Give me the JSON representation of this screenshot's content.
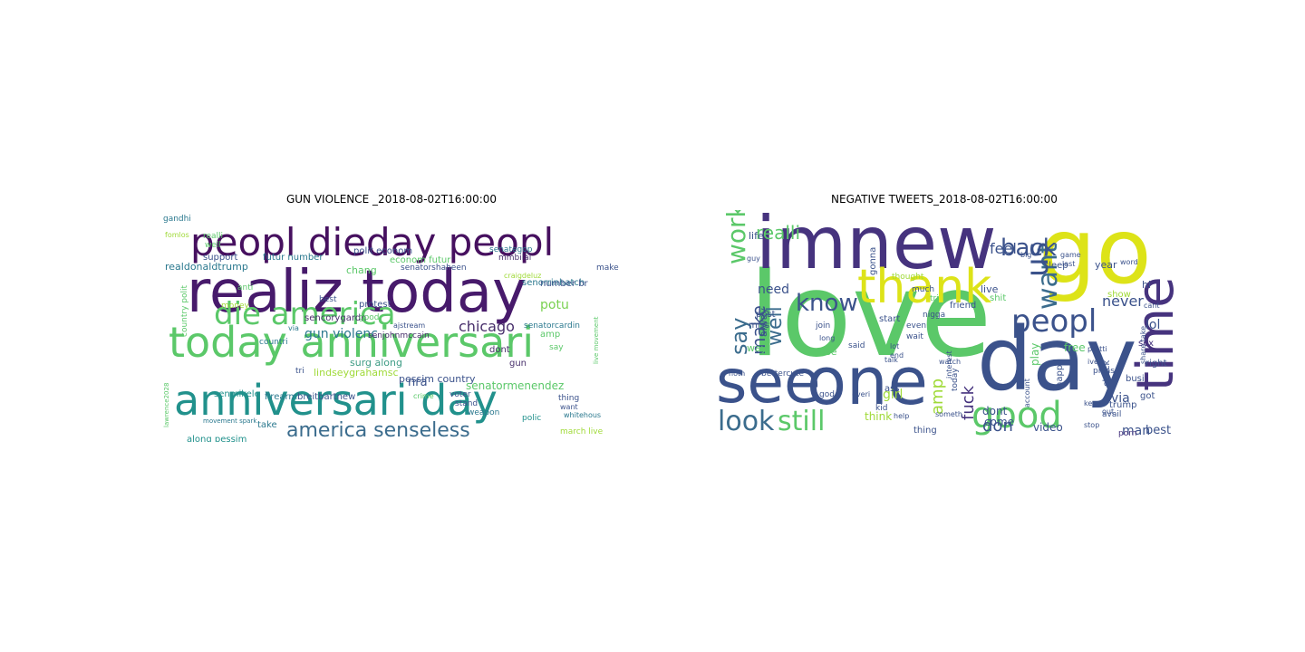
{
  "panels": [
    {
      "title": "GUN VIOLENCE _2018-08-02T16:00:00",
      "words": [
        {
          "text": "realiz today",
          "color": "#471a6b"
        },
        {
          "text": "today anniversari",
          "color": "#5bc869"
        },
        {
          "text": "anniversari day",
          "color": "#21918c"
        },
        {
          "text": "peopl dieday peopl",
          "color": "#46105f"
        },
        {
          "text": "die america",
          "color": "#5bc869"
        },
        {
          "text": "america senseless",
          "color": "#3b6c8d"
        },
        {
          "text": "chicago",
          "color": "#482f6b"
        },
        {
          "text": "gun violenc",
          "color": "#2a788e"
        },
        {
          "text": "potu",
          "color": "#7ad151"
        },
        {
          "text": "nra",
          "color": "#3b528b"
        },
        {
          "text": "senatormenendez",
          "color": "#5bc869"
        },
        {
          "text": "pessim country",
          "color": "#3b528b"
        },
        {
          "text": "lindseygrahamsc",
          "color": "#a0da39"
        },
        {
          "text": "surg along",
          "color": "#3e9c85"
        },
        {
          "text": "senmikele",
          "color": "#21918c"
        },
        {
          "text": "firearm",
          "color": "#2a788e"
        },
        {
          "text": "breitbartnew",
          "color": "#3b528b"
        },
        {
          "text": "along pessim",
          "color": "#21918c"
        },
        {
          "text": "take",
          "color": "#2a788e"
        },
        {
          "text": "senorrinhatch",
          "color": "#2a788e"
        },
        {
          "text": "sencorygardn",
          "color": "#482f6b"
        },
        {
          "text": "realdonaldtrump",
          "color": "#2a788e"
        },
        {
          "text": "support",
          "color": "#3b528b"
        },
        {
          "text": "futur number",
          "color": "#2a788e"
        },
        {
          "text": "polit econom",
          "color": "#3b528b"
        },
        {
          "text": "econom futur",
          "color": "#5bc869"
        },
        {
          "text": "number br",
          "color": "#3b528b"
        },
        {
          "text": "chang",
          "color": "#5bc869"
        },
        {
          "text": "gandhi",
          "color": "#2a788e"
        },
        {
          "text": "realli",
          "color": "#5bc869"
        },
        {
          "text": "well",
          "color": "#5bc869"
        },
        {
          "text": "mmbilal",
          "color": "#482f6b"
        },
        {
          "text": "senategop",
          "color": "#2a788e"
        },
        {
          "text": "senatorshaheen",
          "color": "#3b528b"
        },
        {
          "text": "craigdeluz",
          "color": "#a0da39"
        },
        {
          "text": "senatorcardin",
          "color": "#2a788e"
        },
        {
          "text": "ajstream",
          "color": "#3b528b"
        },
        {
          "text": "senjohnmccain",
          "color": "#482f6b"
        },
        {
          "text": "amp",
          "color": "#5bc869"
        },
        {
          "text": "dont",
          "color": "#482f6b"
        },
        {
          "text": "gun",
          "color": "#482f6b"
        },
        {
          "text": "country polit",
          "color": "#5bc869"
        },
        {
          "text": "countri",
          "color": "#2a788e"
        },
        {
          "text": "anti",
          "color": "#5bc869"
        },
        {
          "text": "money",
          "color": "#a0da39"
        },
        {
          "text": "protest",
          "color": "#3b528b"
        },
        {
          "text": "best",
          "color": "#3b528b"
        },
        {
          "text": "voter",
          "color": "#3b528b"
        },
        {
          "text": "stand",
          "color": "#3b528b"
        },
        {
          "text": "weapon",
          "color": "#2a788e"
        },
        {
          "text": "crime",
          "color": "#5bc869"
        },
        {
          "text": "thing",
          "color": "#3b528b"
        },
        {
          "text": "want",
          "color": "#3b528b"
        },
        {
          "text": "whitehous",
          "color": "#2a788e"
        },
        {
          "text": "polic",
          "color": "#21918c"
        },
        {
          "text": "march live",
          "color": "#a0da39"
        },
        {
          "text": "live movement",
          "color": "#5bc869"
        },
        {
          "text": "make",
          "color": "#3b528b"
        },
        {
          "text": "say",
          "color": "#5bc869"
        },
        {
          "text": "via",
          "color": "#2a788e"
        },
        {
          "text": "tri",
          "color": "#3b528b"
        },
        {
          "text": "good",
          "color": "#5bc869"
        },
        {
          "text": "lawrence2028",
          "color": "#5bc869"
        },
        {
          "text": "movement spark",
          "color": "#2a788e"
        },
        {
          "text": "fomlos",
          "color": "#a0da39"
        }
      ]
    },
    {
      "title": "NEGATIVE TWEETS_2018-08-02T16:00:00",
      "words": [
        {
          "text": "love",
          "color": "#5bc869"
        },
        {
          "text": "day",
          "color": "#3b528b"
        },
        {
          "text": "imnew",
          "color": "#46337e"
        },
        {
          "text": "go",
          "color": "#dde318"
        },
        {
          "text": "one",
          "color": "#3b528b"
        },
        {
          "text": "see",
          "color": "#3b528b"
        },
        {
          "text": "thank",
          "color": "#dde318"
        },
        {
          "text": "time",
          "color": "#46337e"
        },
        {
          "text": "peopl",
          "color": "#3b528b"
        },
        {
          "text": "good",
          "color": "#5bc869"
        },
        {
          "text": "look",
          "color": "#3b6c8d"
        },
        {
          "text": "still",
          "color": "#5bc869"
        },
        {
          "text": "know",
          "color": "#3b528b"
        },
        {
          "text": "want",
          "color": "#3b6c8d"
        },
        {
          "text": "us",
          "color": "#3b528b"
        },
        {
          "text": "back",
          "color": "#3b528b"
        },
        {
          "text": "work",
          "color": "#5bc869"
        },
        {
          "text": "say",
          "color": "#3b6c8d"
        },
        {
          "text": "realli",
          "color": "#5bc869"
        },
        {
          "text": "feel",
          "color": "#3b528b"
        },
        {
          "text": "well",
          "color": "#3b6c8d"
        },
        {
          "text": "make",
          "color": "#3b528b"
        },
        {
          "text": "amp",
          "color": "#a0da39"
        },
        {
          "text": "fuck",
          "color": "#46337e"
        },
        {
          "text": "don",
          "color": "#3b528b"
        },
        {
          "text": "dont",
          "color": "#3b528b"
        },
        {
          "text": "think",
          "color": "#a0da39"
        },
        {
          "text": "come",
          "color": "#3b528b"
        },
        {
          "text": "video",
          "color": "#3b528b"
        },
        {
          "text": "need",
          "color": "#3b528b"
        },
        {
          "text": "never",
          "color": "#3b528b"
        },
        {
          "text": "lol",
          "color": "#3b528b"
        },
        {
          "text": "girl",
          "color": "#a0da39"
        },
        {
          "text": "man",
          "color": "#3b528b"
        },
        {
          "text": "via",
          "color": "#3b528b"
        },
        {
          "text": "best",
          "color": "#3b528b"
        },
        {
          "text": "year",
          "color": "#3b528b"
        },
        {
          "text": "free",
          "color": "#5bc869"
        },
        {
          "text": "play",
          "color": "#5bc869"
        },
        {
          "text": "life",
          "color": "#3b528b"
        },
        {
          "text": "alway",
          "color": "#3b528b"
        },
        {
          "text": "post",
          "color": "#3b528b"
        },
        {
          "text": "miss",
          "color": "#3b528b"
        },
        {
          "text": "way",
          "color": "#5bc869"
        },
        {
          "text": "live",
          "color": "#3b528b"
        },
        {
          "text": "shit",
          "color": "#5bc869"
        },
        {
          "text": "sleep",
          "color": "#3b528b"
        },
        {
          "text": "tri",
          "color": "#5bc869"
        },
        {
          "text": "gonna",
          "color": "#3b528b"
        },
        {
          "text": "much",
          "color": "#3b528b"
        },
        {
          "text": "happi",
          "color": "#3b528b"
        },
        {
          "text": "right",
          "color": "#3b528b"
        },
        {
          "text": "sex",
          "color": "#46337e"
        },
        {
          "text": "check",
          "color": "#3b528b"
        },
        {
          "text": "trump",
          "color": "#3b528b"
        },
        {
          "text": "porn",
          "color": "#46337e"
        },
        {
          "text": "start",
          "color": "#3b528b"
        },
        {
          "text": "nigga",
          "color": "#3b528b"
        },
        {
          "text": "use",
          "color": "#5bc869"
        },
        {
          "text": "god",
          "color": "#3b528b"
        },
        {
          "text": "kid",
          "color": "#3b528b"
        },
        {
          "text": "ass",
          "color": "#3b528b"
        },
        {
          "text": "thing",
          "color": "#3b528b"
        },
        {
          "text": "today",
          "color": "#3b528b"
        },
        {
          "text": "friend",
          "color": "#3b528b"
        },
        {
          "text": "busi",
          "color": "#3b528b"
        },
        {
          "text": "show",
          "color": "#a0da39"
        },
        {
          "text": "hi",
          "color": "#3b528b"
        },
        {
          "text": "got",
          "color": "#3b528b"
        },
        {
          "text": "pleas",
          "color": "#3b528b"
        },
        {
          "text": "someth",
          "color": "#3b528b"
        },
        {
          "text": "share take",
          "color": "#3b528b"
        },
        {
          "text": "even",
          "color": "#3b528b"
        },
        {
          "text": "wait",
          "color": "#3b528b"
        },
        {
          "text": "word",
          "color": "#3b528b"
        },
        {
          "text": "game",
          "color": "#3b528b"
        },
        {
          "text": "last",
          "color": "#3b528b"
        },
        {
          "text": "cant",
          "color": "#3b528b"
        },
        {
          "text": "avail",
          "color": "#3b528b"
        },
        {
          "text": "join",
          "color": "#3b528b"
        },
        {
          "text": "said",
          "color": "#3b528b"
        },
        {
          "text": "long",
          "color": "#3b528b"
        },
        {
          "text": "talk",
          "color": "#3b528b"
        },
        {
          "text": "guy",
          "color": "#3b528b"
        },
        {
          "text": "noth",
          "color": "#3b528b"
        },
        {
          "text": "bettercute",
          "color": "#3b528b"
        },
        {
          "text": "lot",
          "color": "#3b528b"
        },
        {
          "text": "end",
          "color": "#3b528b"
        },
        {
          "text": "thought",
          "color": "#a0da39"
        },
        {
          "text": "watch",
          "color": "#3b528b"
        },
        {
          "text": "big",
          "color": "#3b528b"
        },
        {
          "text": "help",
          "color": "#3b528b"
        },
        {
          "text": "interest",
          "color": "#3b528b"
        },
        {
          "text": "keep",
          "color": "#3b528b"
        },
        {
          "text": "stop",
          "color": "#3b528b"
        },
        {
          "text": "account",
          "color": "#3b528b"
        },
        {
          "text": "everi",
          "color": "#3b528b"
        },
        {
          "text": "ive",
          "color": "#3b528b"
        },
        {
          "text": "pretti",
          "color": "#3b528b"
        },
        {
          "text": "out",
          "color": "#3b528b"
        }
      ]
    }
  ]
}
